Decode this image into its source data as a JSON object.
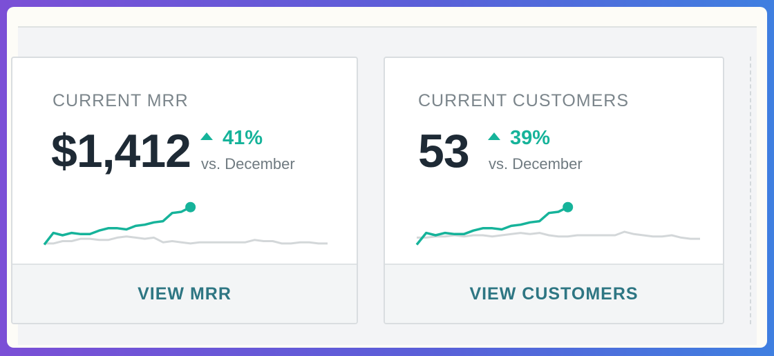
{
  "cards": [
    {
      "label": "CURRENT MRR",
      "value": "$1,412",
      "change": "41%",
      "change_direction": "up",
      "comparison": "vs. December",
      "action_label": "VIEW MRR",
      "sparkline": {
        "current": [
          2,
          12,
          10,
          12,
          11,
          11,
          14,
          16,
          16,
          15,
          18,
          19,
          21,
          22,
          29,
          30,
          34
        ],
        "previous": [
          3,
          3,
          5,
          5,
          7,
          7,
          6,
          6,
          8,
          9,
          8,
          7,
          8,
          4,
          5,
          4,
          3,
          4,
          4,
          4,
          4,
          4,
          4,
          6,
          5,
          5,
          3,
          3,
          4,
          4,
          3,
          3
        ]
      }
    },
    {
      "label": "CURRENT CUSTOMERS",
      "value": "53",
      "change": "39%",
      "change_direction": "up",
      "comparison": "vs. December",
      "action_label": "VIEW CUSTOMERS",
      "sparkline": {
        "current": [
          2,
          12,
          10,
          12,
          11,
          11,
          14,
          16,
          16,
          15,
          18,
          19,
          21,
          22,
          29,
          30,
          34
        ],
        "previous": [
          8,
          8,
          9,
          9,
          10,
          9,
          10,
          10,
          9,
          10,
          11,
          12,
          11,
          12,
          10,
          9,
          9,
          10,
          10,
          10,
          10,
          10,
          13,
          11,
          10,
          9,
          9,
          10,
          8,
          7,
          7
        ]
      }
    }
  ],
  "colors": {
    "accent": "#16b39a",
    "previous_line": "#d3d7d9",
    "value_text": "#1e2a35",
    "action_text": "#2e7683"
  }
}
